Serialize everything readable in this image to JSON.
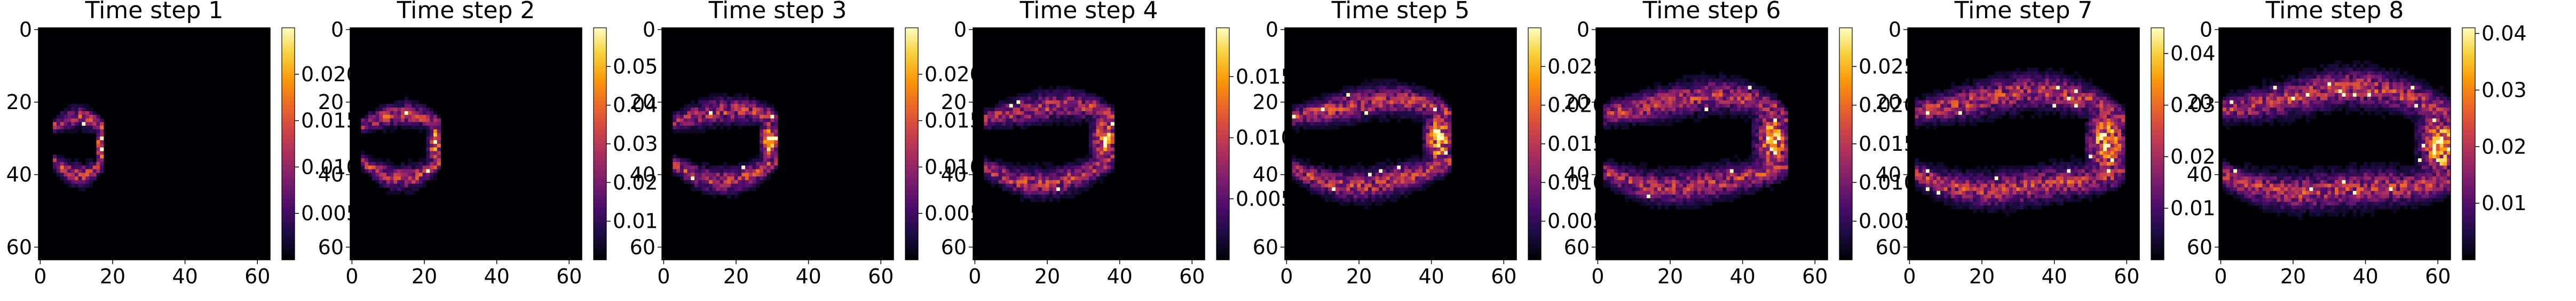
{
  "figure": {
    "layout": "1x8 heatmap panels with colorbars"
  },
  "colormap": [
    "#000004",
    "#1b0c41",
    "#4a0c6b",
    "#781c6d",
    "#a52c60",
    "#cf4446",
    "#ed6925",
    "#fb9b06",
    "#f7d13d",
    "#fcfdbf"
  ],
  "chart_data": [
    {
      "type": "heatmap",
      "title": "Time step 1",
      "xlim": [
        0,
        63
      ],
      "ylim": [
        63,
        0
      ],
      "xticks": [
        "0",
        "20",
        "40",
        "60"
      ],
      "yticks": [
        "0",
        "20",
        "40",
        "60"
      ],
      "colorbar": {
        "vmin": 0,
        "vmax": 0.025,
        "ticks": [
          {
            "v": 0.005,
            "label": "0.005"
          },
          {
            "v": 0.01,
            "label": "0.010"
          },
          {
            "v": 0.015,
            "label": "0.015"
          },
          {
            "v": 0.02,
            "label": "0.020"
          }
        ]
      }
    },
    {
      "type": "heatmap",
      "title": "Time step 2",
      "xlim": [
        0,
        63
      ],
      "ylim": [
        63,
        0
      ],
      "xticks": [
        "0",
        "20",
        "40",
        "60"
      ],
      "yticks": [
        "0",
        "20",
        "40",
        "60"
      ],
      "colorbar": {
        "vmin": 0,
        "vmax": 0.06,
        "ticks": [
          {
            "v": 0.01,
            "label": "0.01"
          },
          {
            "v": 0.02,
            "label": "0.02"
          },
          {
            "v": 0.03,
            "label": "0.03"
          },
          {
            "v": 0.04,
            "label": "0.04"
          },
          {
            "v": 0.05,
            "label": "0.05"
          }
        ]
      }
    },
    {
      "type": "heatmap",
      "title": "Time step 3",
      "xlim": [
        0,
        63
      ],
      "ylim": [
        63,
        0
      ],
      "xticks": [
        "0",
        "20",
        "40",
        "60"
      ],
      "yticks": [
        "0",
        "20",
        "40",
        "60"
      ],
      "colorbar": {
        "vmin": 0,
        "vmax": 0.025,
        "ticks": [
          {
            "v": 0.005,
            "label": "0.005"
          },
          {
            "v": 0.01,
            "label": "0.010"
          },
          {
            "v": 0.015,
            "label": "0.015"
          },
          {
            "v": 0.02,
            "label": "0.020"
          }
        ]
      }
    },
    {
      "type": "heatmap",
      "title": "Time step 4",
      "xlim": [
        0,
        63
      ],
      "ylim": [
        63,
        0
      ],
      "xticks": [
        "0",
        "20",
        "40",
        "60"
      ],
      "yticks": [
        "0",
        "20",
        "40",
        "60"
      ],
      "colorbar": {
        "vmin": 0,
        "vmax": 0.019,
        "ticks": [
          {
            "v": 0.005,
            "label": "0.005"
          },
          {
            "v": 0.01,
            "label": "0.010"
          },
          {
            "v": 0.015,
            "label": "0.015"
          }
        ]
      }
    },
    {
      "type": "heatmap",
      "title": "Time step 5",
      "xlim": [
        0,
        63
      ],
      "ylim": [
        63,
        0
      ],
      "xticks": [
        "0",
        "20",
        "40",
        "60"
      ],
      "yticks": [
        "0",
        "20",
        "40",
        "60"
      ],
      "colorbar": {
        "vmin": 0,
        "vmax": 0.03,
        "ticks": [
          {
            "v": 0.005,
            "label": "0.005"
          },
          {
            "v": 0.01,
            "label": "0.010"
          },
          {
            "v": 0.015,
            "label": "0.015"
          },
          {
            "v": 0.02,
            "label": "0.020"
          },
          {
            "v": 0.025,
            "label": "0.025"
          }
        ]
      }
    },
    {
      "type": "heatmap",
      "title": "Time step 6",
      "xlim": [
        0,
        63
      ],
      "ylim": [
        63,
        0
      ],
      "xticks": [
        "0",
        "20",
        "40",
        "60"
      ],
      "yticks": [
        "0",
        "20",
        "40",
        "60"
      ],
      "colorbar": {
        "vmin": 0,
        "vmax": 0.03,
        "ticks": [
          {
            "v": 0.005,
            "label": "0.005"
          },
          {
            "v": 0.01,
            "label": "0.010"
          },
          {
            "v": 0.015,
            "label": "0.015"
          },
          {
            "v": 0.02,
            "label": "0.020"
          },
          {
            "v": 0.025,
            "label": "0.025"
          }
        ]
      }
    },
    {
      "type": "heatmap",
      "title": "Time step 7",
      "xlim": [
        0,
        63
      ],
      "ylim": [
        63,
        0
      ],
      "xticks": [
        "0",
        "20",
        "40",
        "60"
      ],
      "yticks": [
        "0",
        "20",
        "40",
        "60"
      ],
      "colorbar": {
        "vmin": 0,
        "vmax": 0.045,
        "ticks": [
          {
            "v": 0.01,
            "label": "0.01"
          },
          {
            "v": 0.02,
            "label": "0.02"
          },
          {
            "v": 0.03,
            "label": "0.03"
          },
          {
            "v": 0.04,
            "label": "0.04"
          }
        ]
      }
    },
    {
      "type": "heatmap",
      "title": "Time step 8",
      "xlim": [
        0,
        63
      ],
      "ylim": [
        63,
        0
      ],
      "xticks": [
        "0",
        "20",
        "40",
        "60"
      ],
      "yticks": [
        "0",
        "20",
        "40",
        "60"
      ],
      "colorbar": {
        "vmin": 0,
        "vmax": 0.041,
        "ticks": [
          {
            "v": 0.01,
            "label": "0.01"
          },
          {
            "v": 0.02,
            "label": "0.02"
          },
          {
            "v": 0.03,
            "label": "0.03"
          },
          {
            "v": 0.04,
            "label": "0.04"
          }
        ]
      }
    }
  ]
}
